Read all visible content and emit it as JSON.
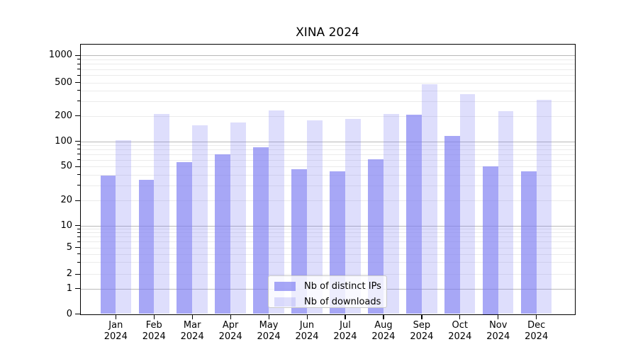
{
  "title": "XINA 2024",
  "chart_data": {
    "type": "bar",
    "scale": "symlog",
    "grid": true,
    "legend_position": "lower center",
    "xlabel": "",
    "ylabel": "",
    "ylim": [
      0,
      1350
    ],
    "year_label": "2024",
    "months": [
      "Jan",
      "Feb",
      "Mar",
      "Apr",
      "May",
      "Jun",
      "Jul",
      "Aug",
      "Sep",
      "Oct",
      "Nov",
      "Dec"
    ],
    "categories": [
      "Jan 2024",
      "Feb 2024",
      "Mar 2024",
      "Apr 2024",
      "May 2024",
      "Jun 2024",
      "Jul 2024",
      "Aug 2024",
      "Sep 2024",
      "Oct 2024",
      "Nov 2024",
      "Dec 2024"
    ],
    "yticks": [
      0,
      1,
      2,
      5,
      10,
      20,
      50,
      100,
      200,
      500,
      1000
    ],
    "series": [
      {
        "name": "Nb of distinct IPs",
        "color": "rgba(125,125,242,0.68)",
        "values": [
          39,
          35,
          56,
          70,
          85,
          46,
          44,
          61,
          205,
          115,
          50,
          44
        ]
      },
      {
        "name": "Nb of downloads",
        "color": "rgba(125,125,242,0.25)",
        "values": [
          102,
          210,
          153,
          168,
          230,
          175,
          184,
          210,
          480,
          360,
          227,
          313
        ]
      }
    ]
  }
}
